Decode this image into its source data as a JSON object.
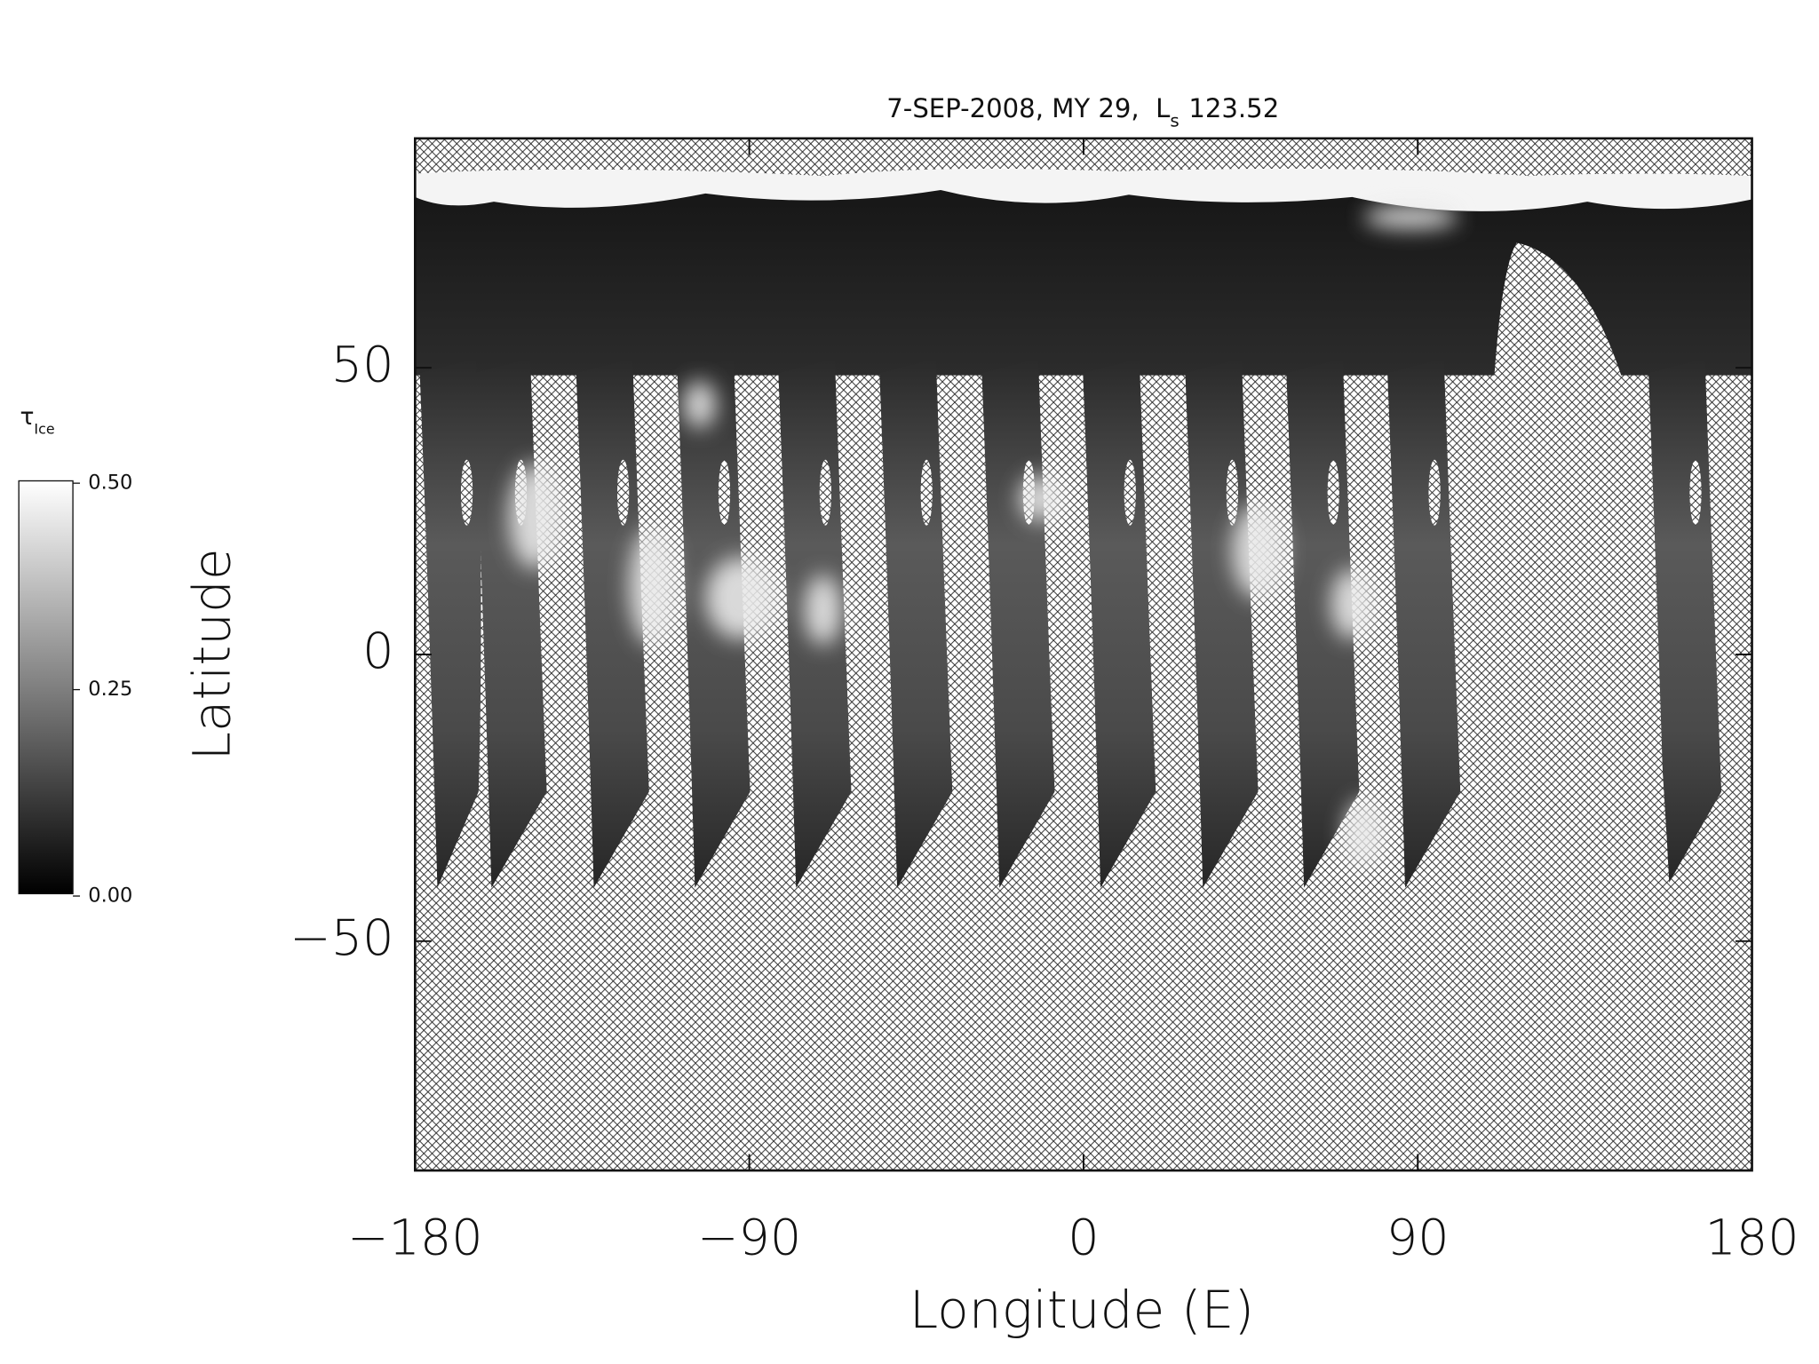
{
  "chart_data": {
    "type": "map",
    "title": "7-SEP-2008, MY 29,  L",
    "title_subscript": "s",
    "title_suffix": "123.52",
    "x_label": "Longitude (E)",
    "y_label": "Latitude",
    "xlim": [
      -180,
      180
    ],
    "xticks": [
      {
        "value": -180,
        "label": "−180"
      },
      {
        "value": -90,
        "label": "−90"
      },
      0,
      90,
      180
    ],
    "ylim": [
      -90,
      90
    ],
    "yticks": [
      {
        "value": -50,
        "label": "−50"
      },
      0,
      50
    ],
    "colorbar": {
      "label": "τ",
      "label_subscript": "Ice",
      "colormap": "gray",
      "lim": [
        0,
        0.5
      ],
      "ticks": [
        {
          "value": 0,
          "label": "0.00"
        },
        {
          "value": 0.25,
          "label": "0.25"
        },
        {
          "value": 0.5,
          "label": "0.50"
        }
      ]
    }
  }
}
